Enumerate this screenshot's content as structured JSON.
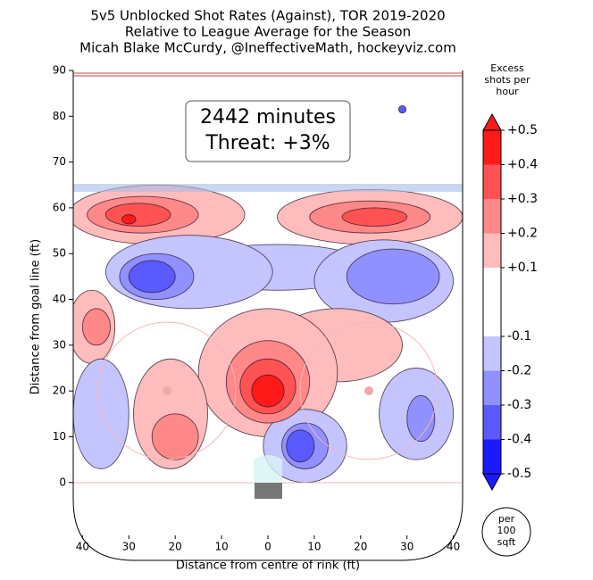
{
  "chart_data": {
    "type": "contour",
    "title": "5v5 Unblocked Shot Rates (Against), TOR 2019-2020",
    "subtitle": [
      "Relative to League Average for the Season",
      "Micah Blake McCurdy, @IneffectiveMath, hockeyviz.com"
    ],
    "annotation": [
      "2442 minutes",
      "Threat: +3%"
    ],
    "xlabel": "Distance from centre of rink (ft)",
    "ylabel": "Distance from goal line (ft)",
    "xlim": [
      -42,
      42
    ],
    "ylim": [
      -17,
      90
    ],
    "xticks": [
      {
        "value": -40,
        "label": "40"
      },
      {
        "value": -30,
        "label": "30"
      },
      {
        "value": -20,
        "label": "20"
      },
      {
        "value": -10,
        "label": "10"
      },
      0,
      10,
      20,
      30,
      40
    ],
    "yticks": [
      0,
      10,
      20,
      30,
      40,
      50,
      60,
      70,
      80,
      90
    ],
    "colorbar": {
      "label": "Excess shots per hour",
      "ticks": [
        -0.5,
        -0.4,
        -0.3,
        -0.2,
        -0.1,
        {
          "value": 0.1,
          "label": "+0.1"
        },
        {
          "value": 0.2,
          "label": "+0.2"
        },
        {
          "value": 0.3,
          "label": "+0.3"
        },
        {
          "value": 0.4,
          "label": "+0.4"
        },
        {
          "value": 0.5,
          "label": "+0.5"
        }
      ],
      "colors": [
        "#1a1aff",
        "#5a5aff",
        "#9090ff",
        "#c4c4ff",
        "#ffffff",
        "#ffbcbc",
        "#ff8888",
        "#ff5252",
        "#ff1a1a"
      ]
    },
    "unit_note": "per 100 sqft",
    "regions": [
      {
        "x": -24,
        "y": 58.5,
        "rx": 19,
        "ry": 6.5,
        "value": 0.15
      },
      {
        "x": 22,
        "y": 58,
        "rx": 20,
        "ry": 6,
        "value": 0.15
      },
      {
        "x": -27,
        "y": 58.5,
        "rx": 12,
        "ry": 4,
        "value": 0.25
      },
      {
        "x": 22,
        "y": 58,
        "rx": 13,
        "ry": 3.5,
        "value": 0.25
      },
      {
        "x": -28,
        "y": 58.5,
        "rx": 7,
        "ry": 2.5,
        "value": 0.35
      },
      {
        "x": 23,
        "y": 58,
        "rx": 7,
        "ry": 2,
        "value": 0.35
      },
      {
        "x": -30,
        "y": 57.5,
        "rx": 1.5,
        "ry": 1,
        "value": 0.45
      },
      {
        "x": 2,
        "y": 47,
        "rx": 20,
        "ry": 5,
        "value": -0.15
      },
      {
        "x": -17,
        "y": 46,
        "rx": 18,
        "ry": 8,
        "value": -0.15
      },
      {
        "x": 25,
        "y": 44,
        "rx": 15,
        "ry": 9,
        "value": -0.15
      },
      {
        "x": -24,
        "y": 45,
        "rx": 8,
        "ry": 5,
        "value": -0.25
      },
      {
        "x": 27,
        "y": 45,
        "rx": 10,
        "ry": 6,
        "value": -0.25
      },
      {
        "x": -25,
        "y": 45,
        "rx": 5,
        "ry": 3.5,
        "value": -0.35
      },
      {
        "x": -38,
        "y": 34,
        "rx": 5,
        "ry": 8,
        "value": 0.15
      },
      {
        "x": -37,
        "y": 34,
        "rx": 3,
        "ry": 4,
        "value": 0.25
      },
      {
        "x": -36,
        "y": 15,
        "rx": 6,
        "ry": 12,
        "value": -0.15
      },
      {
        "x": 15,
        "y": 30,
        "rx": 14,
        "ry": 8,
        "value": 0.15
      },
      {
        "x": 0,
        "y": 24,
        "rx": 15,
        "ry": 14,
        "value": 0.15
      },
      {
        "x": -21,
        "y": 15,
        "rx": 8,
        "ry": 12,
        "value": 0.15
      },
      {
        "x": 32,
        "y": 15,
        "rx": 8,
        "ry": 10,
        "value": -0.15
      },
      {
        "x": 8,
        "y": 8,
        "rx": 9,
        "ry": 8,
        "value": -0.15
      },
      {
        "x": 0,
        "y": 22,
        "rx": 9,
        "ry": 9,
        "value": 0.25
      },
      {
        "x": -20,
        "y": 10,
        "rx": 5,
        "ry": 5,
        "value": 0.25
      },
      {
        "x": 33,
        "y": 14,
        "rx": 3,
        "ry": 5,
        "value": -0.25
      },
      {
        "x": 8,
        "y": 8,
        "rx": 5,
        "ry": 5,
        "value": -0.25
      },
      {
        "x": 0,
        "y": 21,
        "rx": 6,
        "ry": 6,
        "value": 0.35
      },
      {
        "x": 7,
        "y": 8,
        "rx": 3,
        "ry": 3.5,
        "value": -0.35
      },
      {
        "x": 0,
        "y": 20,
        "rx": 3.5,
        "ry": 3.5,
        "value": 0.45
      },
      {
        "x": 29,
        "y": 81.5,
        "rx": 0.8,
        "ry": 0.8,
        "value": -0.35
      }
    ]
  }
}
